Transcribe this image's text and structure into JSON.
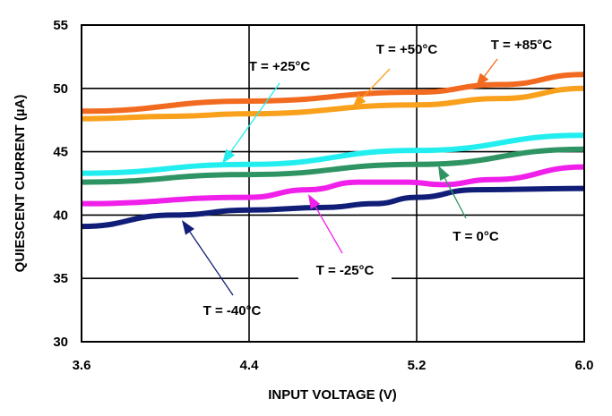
{
  "chart_data": {
    "type": "line",
    "title": "",
    "xlabel": "INPUT VOLTAGE (V)",
    "ylabel": "QUIESCENT CURRENT (µA)",
    "xlim": [
      3.6,
      6.0
    ],
    "ylim": [
      30,
      55
    ],
    "xticks": [
      "3.6",
      "4.4",
      "5.2",
      "6.0"
    ],
    "yticks": [
      "30",
      "35",
      "40",
      "45",
      "50",
      "55"
    ],
    "grid": true,
    "series": [
      {
        "name": "T = +85°C",
        "color": "#f26a1f",
        "x": [
          3.6,
          4.4,
          5.2,
          5.6,
          6.0
        ],
        "y": [
          48.2,
          49.0,
          49.7,
          50.3,
          51.1
        ]
      },
      {
        "name": "T = +50°C",
        "color": "#f9a01c",
        "x": [
          3.6,
          4.04,
          4.4,
          5.2,
          5.6,
          6.0
        ],
        "y": [
          47.6,
          47.8,
          48.0,
          48.7,
          49.2,
          50.0
        ]
      },
      {
        "name": "T = +25°C",
        "color": "#22eef0",
        "x": [
          3.6,
          4.4,
          5.2,
          6.0
        ],
        "y": [
          43.3,
          44.0,
          45.1,
          46.3
        ]
      },
      {
        "name": "T = 0°C",
        "color": "#2f9463",
        "x": [
          3.6,
          4.4,
          5.2,
          6.0
        ],
        "y": [
          42.6,
          43.2,
          44.0,
          45.2
        ]
      },
      {
        "name": "T = -25°C",
        "color": "#f01fea",
        "x": [
          3.6,
          4.4,
          4.68,
          4.92,
          5.16,
          5.32,
          5.56,
          6.0
        ],
        "y": [
          40.9,
          41.4,
          42.0,
          42.6,
          42.6,
          42.4,
          42.8,
          43.8
        ]
      },
      {
        "name": "T = -40°C",
        "color": "#101e78",
        "x": [
          3.6,
          4.04,
          4.4,
          4.76,
          5.0,
          5.2,
          5.48,
          6.0
        ],
        "y": [
          39.1,
          40.0,
          40.4,
          40.6,
          40.9,
          41.4,
          42.0,
          42.1
        ]
      }
    ]
  }
}
